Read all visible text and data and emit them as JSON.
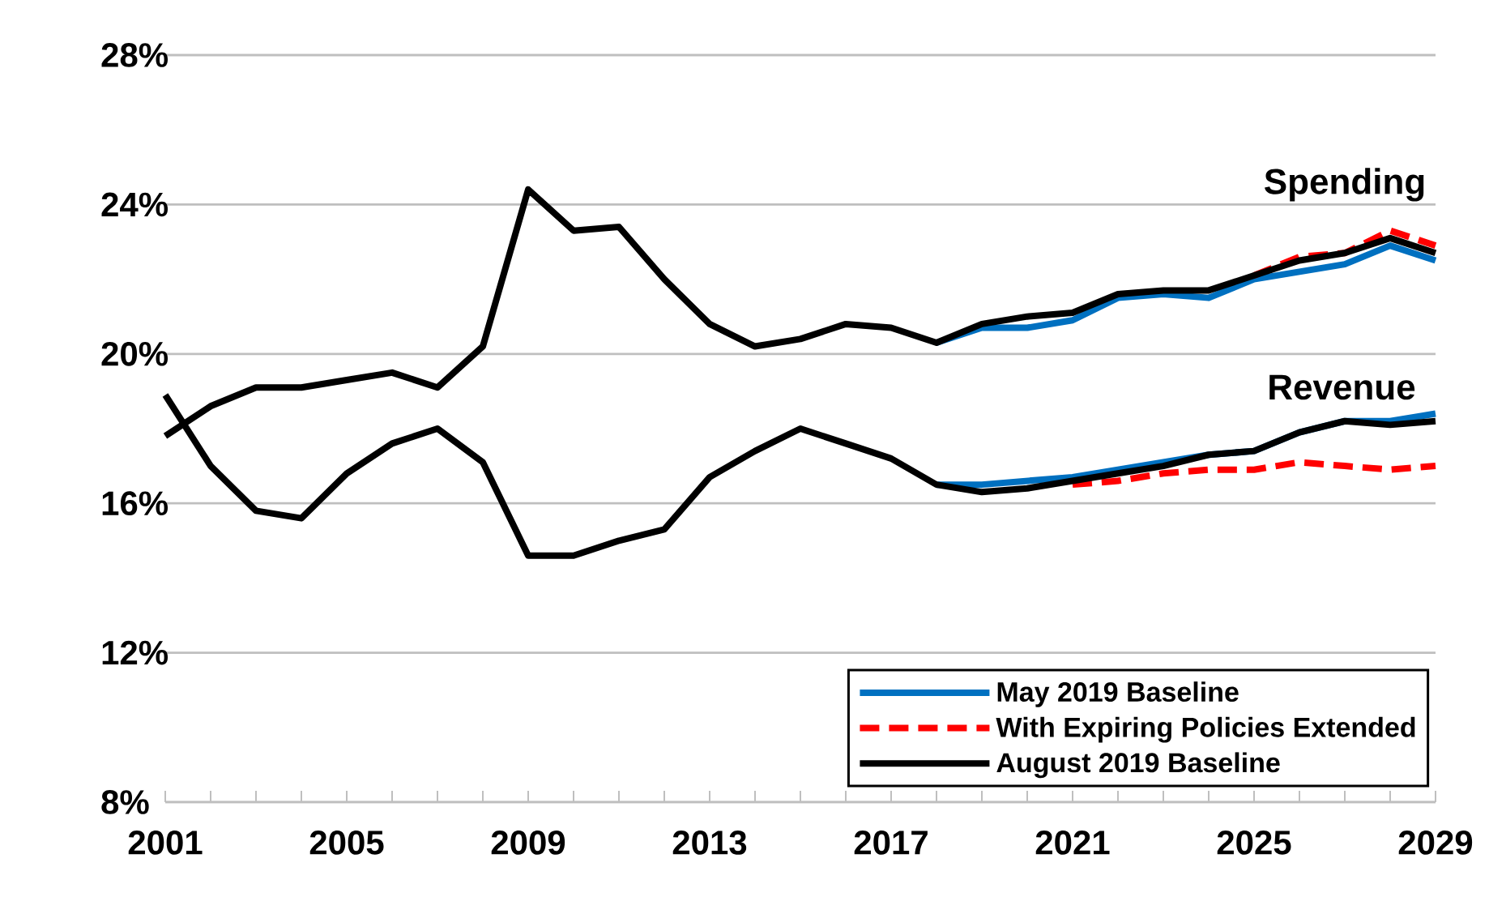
{
  "chart_data": {
    "type": "line",
    "xlim": [
      2001,
      2029
    ],
    "ylim": [
      8,
      28
    ],
    "xticks": [
      2001,
      {
        "value": 2002,
        "label": null
      },
      {
        "value": 2003,
        "label": null
      },
      {
        "value": 2004,
        "label": null
      },
      2005,
      {
        "value": 2006,
        "label": null
      },
      {
        "value": 2007,
        "label": null
      },
      {
        "value": 2008,
        "label": null
      },
      2009,
      {
        "value": 2010,
        "label": null
      },
      {
        "value": 2011,
        "label": null
      },
      {
        "value": 2012,
        "label": null
      },
      2013,
      {
        "value": 2014,
        "label": null
      },
      {
        "value": 2015,
        "label": null
      },
      {
        "value": 2016,
        "label": null
      },
      2017,
      {
        "value": 2018,
        "label": null
      },
      {
        "value": 2019,
        "label": null
      },
      {
        "value": 2020,
        "label": null
      },
      2021,
      {
        "value": 2022,
        "label": null
      },
      {
        "value": 2023,
        "label": null
      },
      {
        "value": 2024,
        "label": null
      },
      2025,
      {
        "value": 2026,
        "label": null
      },
      {
        "value": 2027,
        "label": null
      },
      {
        "value": 2028,
        "label": null
      },
      2029
    ],
    "yticks": [
      {
        "value": 8,
        "label": "8%"
      },
      {
        "value": 12,
        "label": "12%"
      },
      {
        "value": 16,
        "label": "16%"
      },
      {
        "value": 20,
        "label": "20%"
      },
      {
        "value": 24,
        "label": "24%"
      },
      {
        "value": 28,
        "label": "28%"
      }
    ],
    "grid": "y",
    "legend": "bottom right",
    "marker": "none",
    "series": [
      {
        "name": "May 2019 Baseline",
        "color": "#0070c0",
        "x": [
          2018,
          2019,
          2020,
          2021,
          2022,
          2023,
          2024,
          2025,
          2026,
          2027,
          2028,
          2029
        ],
        "values": [
          20.3,
          20.7,
          20.7,
          20.9,
          21.5,
          21.6,
          21.5,
          22.0,
          22.2,
          22.4,
          22.9,
          22.5
        ]
      },
      {
        "color": "#0070c0",
        "x": [
          2018,
          2019,
          2020,
          2021,
          2022,
          2023,
          2024,
          2025,
          2026,
          2027,
          2028,
          2029
        ],
        "values": [
          16.5,
          16.5,
          16.6,
          16.7,
          16.9,
          17.1,
          17.3,
          17.4,
          17.9,
          18.2,
          18.2,
          18.4
        ]
      },
      {
        "name": "With Expiring Policies Extended",
        "color": "#ff0000",
        "line_style": "dashed",
        "x": [
          2025,
          2026,
          2027,
          2028,
          2029
        ],
        "values": [
          22.1,
          22.6,
          22.7,
          23.3,
          22.9
        ]
      },
      {
        "color": "#ff0000",
        "line_style": "dashed",
        "x": [
          2021,
          2022,
          2023,
          2024,
          2025,
          2026,
          2027,
          2028,
          2029
        ],
        "values": [
          16.5,
          16.6,
          16.8,
          16.9,
          16.9,
          17.1,
          17.0,
          16.9,
          17.0
        ]
      },
      {
        "name": "August 2019 Baseline",
        "color": "#000000",
        "x": [
          2001,
          2002,
          2003,
          2004,
          2005,
          2006,
          2007,
          2008,
          2009,
          2010,
          2011,
          2012,
          2013,
          2014,
          2015,
          2016,
          2017,
          2018,
          2019,
          2020,
          2021,
          2022,
          2023,
          2024,
          2025,
          2026,
          2027,
          2028,
          2029
        ],
        "values": [
          17.8,
          18.6,
          19.1,
          19.1,
          19.3,
          19.5,
          19.1,
          20.2,
          24.4,
          23.3,
          23.4,
          22.0,
          20.8,
          20.2,
          20.4,
          20.8,
          20.7,
          20.3,
          20.8,
          21.0,
          21.1,
          21.6,
          21.7,
          21.7,
          22.1,
          22.5,
          22.7,
          23.1,
          22.7
        ]
      },
      {
        "color": "#000000",
        "x": [
          2001,
          2002,
          2003,
          2004,
          2005,
          2006,
          2007,
          2008,
          2009,
          2010,
          2011,
          2012,
          2013,
          2014,
          2015,
          2016,
          2017,
          2018,
          2019,
          2020,
          2021,
          2022,
          2023,
          2024,
          2025,
          2026,
          2027,
          2028,
          2029
        ],
        "values": [
          18.9,
          17.0,
          15.8,
          15.6,
          16.8,
          17.6,
          18.0,
          17.1,
          14.6,
          14.6,
          15.0,
          15.3,
          16.7,
          17.4,
          18.0,
          17.6,
          17.2,
          16.5,
          16.3,
          16.4,
          16.6,
          16.8,
          17.0,
          17.3,
          17.4,
          17.9,
          18.2,
          18.1,
          18.2
        ]
      }
    ],
    "annotations": [
      "Spending",
      "Revenue"
    ]
  }
}
